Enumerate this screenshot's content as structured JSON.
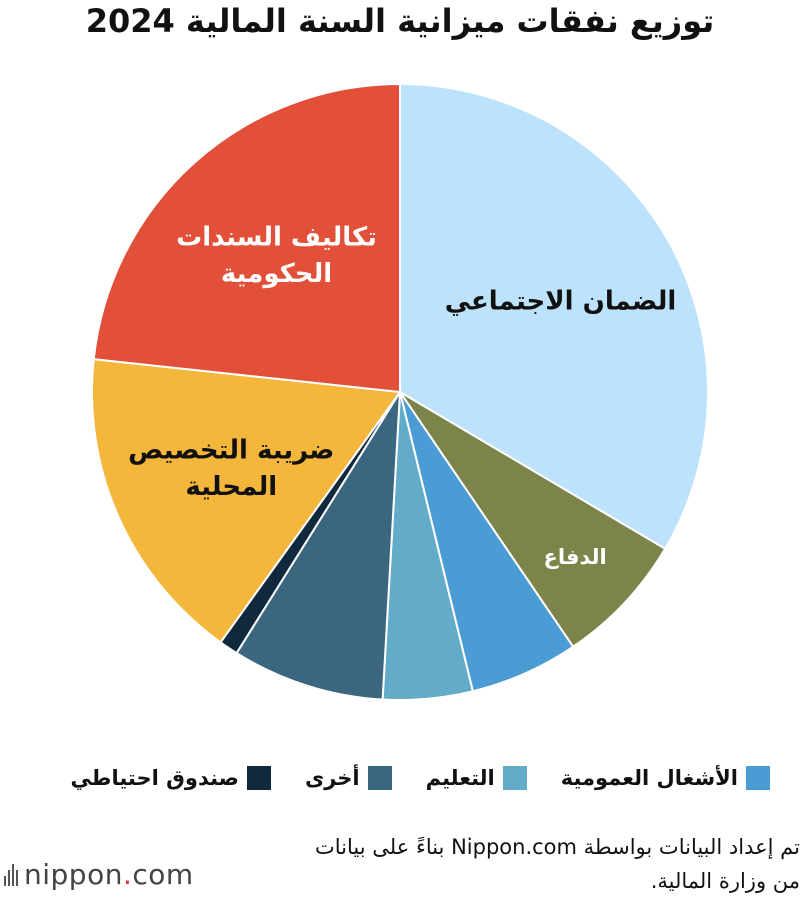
{
  "chart_data": {
    "type": "pie",
    "title": "توزيع نفقات ميزانية السنة المالية 2024",
    "slices": [
      {
        "label": "الضمان الاجتماعي",
        "value": 33.5,
        "color": "#bde2fb",
        "label_color": "#111111"
      },
      {
        "label": "الدفاع",
        "value": 7.0,
        "color": "#7d844a",
        "label_color": "#ffffff"
      },
      {
        "label": "الأشغال العمومية",
        "value": 5.7,
        "color": "#4b9bd5",
        "label_color": ""
      },
      {
        "label": "التعليم",
        "value": 4.7,
        "color": "#62acc9",
        "label_color": ""
      },
      {
        "label": "أخرى",
        "value": 8.0,
        "color": "#3b6680",
        "label_color": ""
      },
      {
        "label": "صندوق احتياطي",
        "value": 1.0,
        "color": "#10293d",
        "label_color": ""
      },
      {
        "label": "ضريبة التخصيص المحلية",
        "value": 16.8,
        "color": "#f4b63b",
        "label_color": "#111111"
      },
      {
        "label": "تكاليف السندات الحكومية",
        "value": 23.3,
        "color": "#e2503a",
        "label_color": "#ffffff"
      }
    ],
    "slice_label_lines": {
      "الضمان الاجتماعي": [
        "الضمان الاجتماعي"
      ],
      "الدفاع": [
        "الدفاع"
      ],
      "ضريبة التخصيص المحلية": [
        "ضريبة التخصيص",
        "المحلية"
      ],
      "تكاليف السندات الحكومية": [
        "تكاليف السندات",
        "الحكومية"
      ]
    },
    "legend": [
      "الأشغال العمومية",
      "التعليم",
      "أخرى",
      "صندوق احتياطي"
    ],
    "legend_placement": "bottom"
  },
  "source": {
    "line1": "تم إعداد البيانات بواسطة Nippon.com بناءً على بيانات",
    "line2": "من وزارة المالية."
  },
  "logo": {
    "text": "nippon",
    "dot": ".",
    "suffix": "com"
  }
}
